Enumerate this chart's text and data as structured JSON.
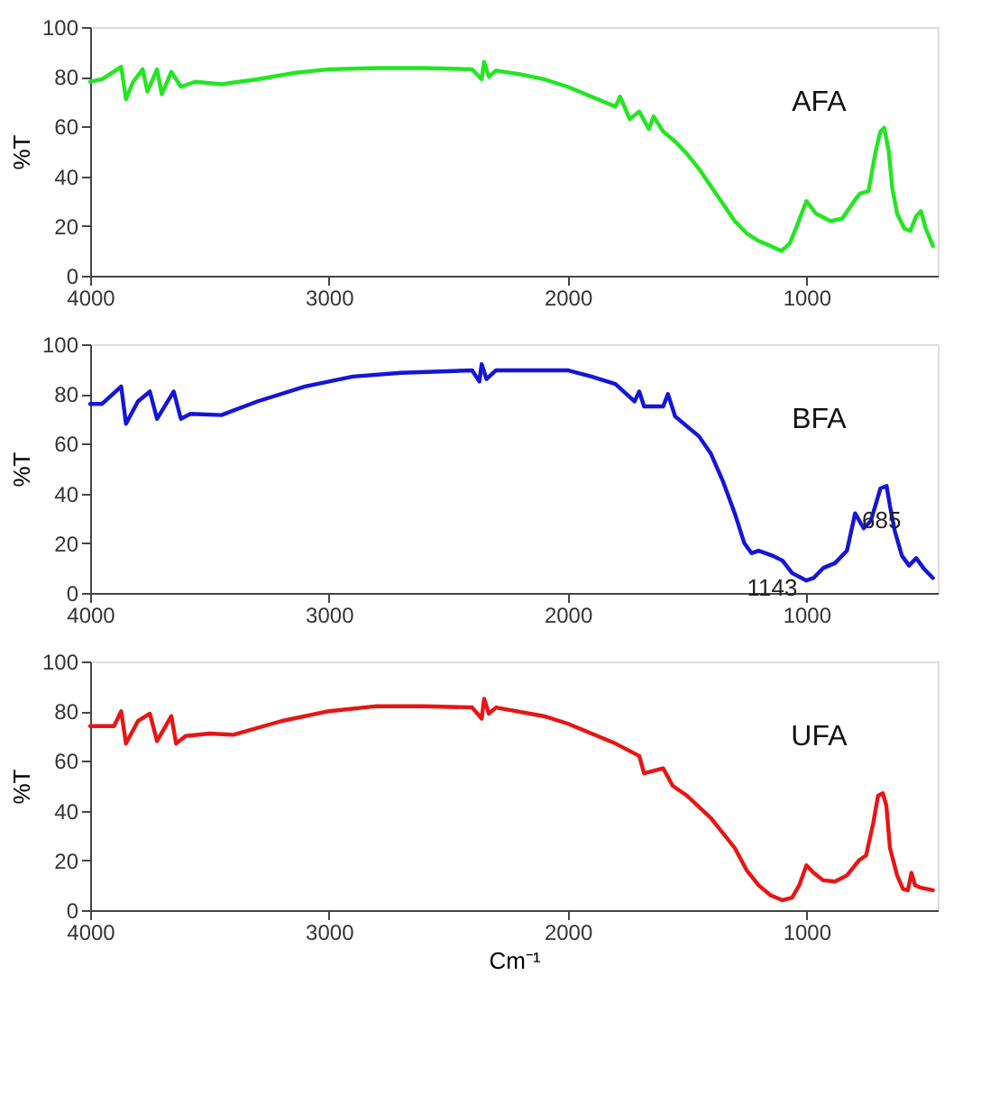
{
  "chart_data": [
    {
      "type": "line",
      "xlim": [
        4000,
        450
      ],
      "xticks": [
        4000,
        3000,
        2000,
        1000
      ],
      "ylim": [
        0,
        100
      ],
      "yticks": [
        0,
        20,
        40,
        60,
        80,
        100
      ],
      "ylabel": "%T",
      "grid": false,
      "legend": false,
      "line_style": "solid",
      "series": [
        {
          "name": "AFA",
          "color": "#22e622",
          "x": [
            4000,
            3950,
            3870,
            3850,
            3820,
            3780,
            3760,
            3720,
            3700,
            3660,
            3620,
            3560,
            3450,
            3300,
            3150,
            3000,
            2800,
            2600,
            2400,
            2360,
            2350,
            2330,
            2300,
            2200,
            2100,
            2000,
            1900,
            1800,
            1780,
            1740,
            1700,
            1660,
            1640,
            1600,
            1550,
            1500,
            1450,
            1400,
            1350,
            1300,
            1250,
            1200,
            1150,
            1104,
            1070,
            1040,
            1000,
            960,
            900,
            850,
            800,
            776,
            740,
            710,
            690,
            674,
            655,
            640,
            620,
            590,
            565,
            540,
            520,
            500,
            470
          ],
          "values": [
            78,
            79,
            84,
            71,
            78,
            83,
            74,
            83,
            73,
            82,
            76,
            78,
            77,
            79,
            81.5,
            83,
            83.5,
            83.5,
            83,
            79,
            86,
            80,
            82.5,
            81,
            79,
            76,
            72,
            68,
            72,
            63,
            66,
            59,
            64,
            58,
            54,
            49,
            43,
            36,
            29,
            22,
            17,
            14,
            12,
            10,
            13,
            20,
            30,
            25,
            22,
            23,
            30,
            33,
            34,
            50,
            58,
            59.5,
            50,
            35,
            25,
            19,
            18,
            24,
            26,
            19,
            12
          ]
        }
      ]
    },
    {
      "type": "line",
      "xlim": [
        4000,
        450
      ],
      "xticks": [
        4000,
        3000,
        2000,
        1000
      ],
      "ylim": [
        0,
        100
      ],
      "yticks": [
        0,
        20,
        40,
        60,
        80,
        100
      ],
      "ylabel": "%T",
      "grid": false,
      "legend": false,
      "line_style": "solid",
      "annotations": [
        {
          "text": "1143",
          "x": 1143,
          "y": 15
        },
        {
          "text": "685",
          "x": 685,
          "y": 42
        }
      ],
      "series": [
        {
          "name": "BFA",
          "color": "#1515d8",
          "x": [
            4000,
            3950,
            3870,
            3850,
            3800,
            3750,
            3720,
            3650,
            3620,
            3580,
            3450,
            3300,
            3100,
            2900,
            2700,
            2400,
            2370,
            2360,
            2340,
            2300,
            2000,
            1900,
            1800,
            1720,
            1700,
            1680,
            1600,
            1580,
            1550,
            1500,
            1450,
            1400,
            1350,
            1300,
            1260,
            1230,
            1200,
            1143,
            1100,
            1060,
            1000,
            970,
            930,
            880,
            830,
            796,
            760,
            730,
            690,
            664,
            650,
            630,
            600,
            570,
            540,
            510,
            470
          ],
          "values": [
            76,
            76,
            83,
            68,
            77,
            81,
            70,
            81,
            70,
            72,
            71.5,
            77,
            83,
            87,
            88.5,
            89.5,
            85,
            92,
            86,
            89.5,
            89.5,
            87,
            84,
            77,
            81,
            75,
            75,
            80,
            71,
            67,
            63,
            56,
            45,
            32,
            20,
            16,
            17,
            15,
            13,
            8,
            5,
            6,
            10,
            12,
            17,
            32,
            26,
            29,
            42,
            43,
            35,
            25,
            15,
            11,
            14,
            10,
            6
          ]
        }
      ]
    },
    {
      "type": "line",
      "xlim": [
        4000,
        450
      ],
      "xticks": [
        4000,
        3000,
        2000,
        1000
      ],
      "ylim": [
        0,
        100
      ],
      "yticks": [
        0,
        20,
        40,
        60,
        80,
        100
      ],
      "ylabel": "%T",
      "xlabel": "Cm⁻¹",
      "grid": false,
      "legend": false,
      "line_style": "solid",
      "series": [
        {
          "name": "UFA",
          "color": "#e81515",
          "x": [
            4000,
            3900,
            3870,
            3850,
            3800,
            3750,
            3720,
            3660,
            3640,
            3600,
            3500,
            3400,
            3200,
            3000,
            2800,
            2600,
            2400,
            2360,
            2350,
            2330,
            2300,
            2100,
            2000,
            1900,
            1800,
            1700,
            1680,
            1600,
            1560,
            1500,
            1400,
            1300,
            1250,
            1200,
            1150,
            1100,
            1060,
            1030,
            1000,
            970,
            930,
            880,
            830,
            780,
            750,
            720,
            700,
            680,
            665,
            650,
            620,
            595,
            575,
            560,
            545,
            520,
            470
          ],
          "values": [
            74,
            74,
            80,
            67,
            76,
            79,
            68,
            78,
            67,
            70,
            71,
            70.5,
            76,
            80,
            82,
            82,
            81.5,
            77,
            85,
            79,
            81.5,
            78,
            75,
            71,
            67,
            62,
            55,
            57,
            50,
            46,
            37,
            25,
            16,
            10,
            6,
            4,
            5,
            10,
            18,
            15,
            12,
            11.5,
            14,
            20,
            22,
            35,
            46,
            47,
            42,
            25,
            14,
            8.5,
            8,
            15,
            10,
            9,
            8
          ]
        }
      ]
    }
  ]
}
